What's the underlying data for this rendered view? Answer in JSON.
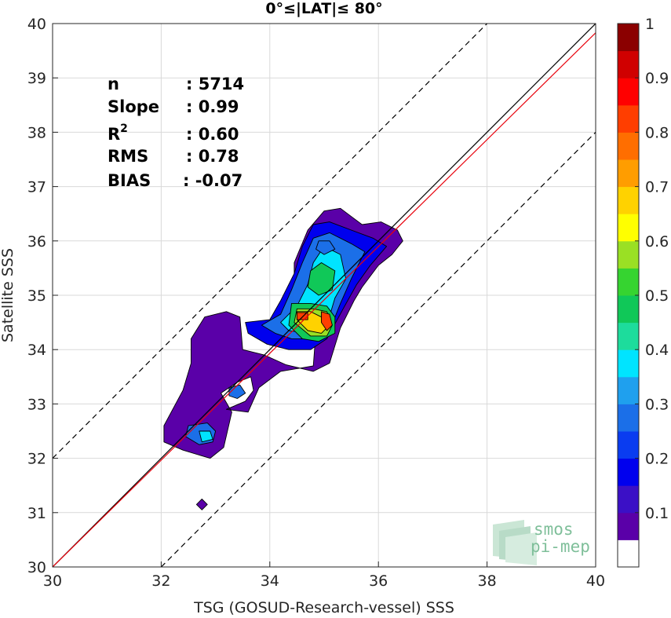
{
  "chart_data": {
    "type": "heatmap",
    "subtype": "filled-contour density scatter",
    "title": "0°≤|LAT|≤ 80°",
    "xlabel": "TSG (GOSUD-Research-vessel) SSS",
    "ylabel": "Satellite SSS",
    "xlim": [
      30,
      40
    ],
    "ylim": [
      30,
      40
    ],
    "xticks": [
      "30",
      "32",
      "34",
      "36",
      "38",
      "40"
    ],
    "yticks": [
      "30",
      "31",
      "32",
      "33",
      "34",
      "35",
      "36",
      "37",
      "38",
      "39",
      "40"
    ],
    "grid": true,
    "stats": [
      {
        "label": "n",
        "value": ": 5714"
      },
      {
        "label": "Slope",
        "value": ": 0.99"
      },
      {
        "label": "R",
        "sup": "2",
        "value": ": 0.60"
      },
      {
        "label": "RMS",
        "value": ": 0.78"
      },
      {
        "label": "BIAS",
        "value": ": -0.07"
      }
    ],
    "reference_lines": [
      {
        "kind": "identity",
        "color": "#000000",
        "points": [
          [
            30,
            30
          ],
          [
            40,
            40
          ]
        ]
      },
      {
        "kind": "regression",
        "color": "#e8000b",
        "points": [
          [
            30,
            30
          ],
          [
            40,
            39.83
          ]
        ]
      },
      {
        "kind": "plus-2",
        "color": "#000000",
        "dash": true,
        "points": [
          [
            30,
            32
          ],
          [
            38,
            40
          ]
        ]
      },
      {
        "kind": "minus-2",
        "color": "#000000",
        "dash": true,
        "points": [
          [
            32,
            30
          ],
          [
            40,
            38
          ]
        ]
      }
    ],
    "colorbar": {
      "range": [
        0,
        1
      ],
      "ticks": [
        "0.1",
        "0.2",
        "0.3",
        "0.4",
        "0.5",
        "0.6",
        "0.7",
        "0.8",
        "0.9",
        "1"
      ],
      "tick_values": [
        0.1,
        0.2,
        0.3,
        0.4,
        0.5,
        0.6,
        0.7,
        0.8,
        0.9,
        1.0
      ],
      "bands": [
        {
          "from": 0.0,
          "to": 0.05,
          "color": "#ffffff"
        },
        {
          "from": 0.05,
          "to": 0.1,
          "color": "#5a00a8"
        },
        {
          "from": 0.1,
          "to": 0.15,
          "color": "#3b10c6"
        },
        {
          "from": 0.15,
          "to": 0.2,
          "color": "#0000ee"
        },
        {
          "from": 0.2,
          "to": 0.25,
          "color": "#0a3cf0"
        },
        {
          "from": 0.25,
          "to": 0.3,
          "color": "#1b6fe8"
        },
        {
          "from": 0.3,
          "to": 0.35,
          "color": "#1fa0ee"
        },
        {
          "from": 0.35,
          "to": 0.4,
          "color": "#00e4ff"
        },
        {
          "from": 0.4,
          "to": 0.45,
          "color": "#1ddc9c"
        },
        {
          "from": 0.45,
          "to": 0.5,
          "color": "#10c858"
        },
        {
          "from": 0.5,
          "to": 0.55,
          "color": "#36d430"
        },
        {
          "from": 0.55,
          "to": 0.6,
          "color": "#9ae024"
        },
        {
          "from": 0.6,
          "to": 0.65,
          "color": "#ffff00"
        },
        {
          "from": 0.65,
          "to": 0.7,
          "color": "#ffd200"
        },
        {
          "from": 0.7,
          "to": 0.75,
          "color": "#ff9d00"
        },
        {
          "from": 0.75,
          "to": 0.8,
          "color": "#ff6e00"
        },
        {
          "from": 0.8,
          "to": 0.85,
          "color": "#ff3e00"
        },
        {
          "from": 0.85,
          "to": 0.9,
          "color": "#ff0000"
        },
        {
          "from": 0.9,
          "to": 0.95,
          "color": "#d00000"
        },
        {
          "from": 0.95,
          "to": 1.0,
          "color": "#8b0000"
        }
      ]
    },
    "density_regions": [
      {
        "level": 0.1,
        "points": [
          [
            35.0,
            36.55
          ],
          [
            35.3,
            36.6
          ],
          [
            35.5,
            36.45
          ],
          [
            35.7,
            36.3
          ],
          [
            36.05,
            36.35
          ],
          [
            36.35,
            36.2
          ],
          [
            36.45,
            36.0
          ],
          [
            36.25,
            35.75
          ],
          [
            36.0,
            35.55
          ],
          [
            35.7,
            35.15
          ],
          [
            35.55,
            34.9
          ],
          [
            35.3,
            34.4
          ],
          [
            35.1,
            33.75
          ],
          [
            34.8,
            33.6
          ],
          [
            34.3,
            33.72
          ],
          [
            33.9,
            33.9
          ],
          [
            33.5,
            34.0
          ],
          [
            33.45,
            34.6
          ],
          [
            33.2,
            34.7
          ],
          [
            32.8,
            34.6
          ],
          [
            32.55,
            34.2
          ],
          [
            32.55,
            33.75
          ],
          [
            32.4,
            33.25
          ],
          [
            32.05,
            32.6
          ],
          [
            32.05,
            32.3
          ],
          [
            32.4,
            32.15
          ],
          [
            32.9,
            32.0
          ],
          [
            33.15,
            32.2
          ],
          [
            33.3,
            32.85
          ],
          [
            33.1,
            33.2
          ],
          [
            33.4,
            33.4
          ],
          [
            33.65,
            33.5
          ],
          [
            33.7,
            33.25
          ],
          [
            33.55,
            33.05
          ],
          [
            33.2,
            32.9
          ],
          [
            33.6,
            32.85
          ],
          [
            33.8,
            33.3
          ],
          [
            34.2,
            33.6
          ],
          [
            34.8,
            33.7
          ],
          [
            34.85,
            34.35
          ],
          [
            34.5,
            34.6
          ],
          [
            34.45,
            35.1
          ],
          [
            34.45,
            35.6
          ],
          [
            34.7,
            36.2
          ]
        ]
      },
      {
        "level": 0.2,
        "points": [
          [
            35.1,
            36.35
          ],
          [
            35.5,
            36.2
          ],
          [
            35.9,
            36.05
          ],
          [
            36.15,
            35.9
          ],
          [
            35.85,
            35.55
          ],
          [
            35.6,
            35.2
          ],
          [
            35.35,
            34.75
          ],
          [
            35.05,
            34.2
          ],
          [
            34.75,
            34.0
          ],
          [
            34.35,
            34.0
          ],
          [
            33.95,
            34.1
          ],
          [
            33.6,
            34.3
          ],
          [
            33.55,
            34.5
          ],
          [
            34.0,
            34.55
          ],
          [
            34.2,
            34.9
          ],
          [
            34.45,
            35.4
          ],
          [
            34.6,
            35.9
          ],
          [
            34.8,
            36.3
          ]
        ]
      },
      {
        "level": 0.3,
        "points": [
          [
            35.1,
            36.15
          ],
          [
            35.5,
            35.95
          ],
          [
            35.75,
            35.8
          ],
          [
            35.5,
            35.3
          ],
          [
            35.3,
            34.85
          ],
          [
            35.1,
            34.35
          ],
          [
            34.8,
            34.2
          ],
          [
            34.4,
            34.2
          ],
          [
            34.1,
            34.3
          ],
          [
            33.85,
            34.45
          ],
          [
            34.2,
            34.65
          ],
          [
            34.4,
            35.1
          ],
          [
            34.6,
            35.6
          ],
          [
            34.8,
            36.05
          ]
        ]
      },
      {
        "level": 0.4,
        "points": [
          [
            35.0,
            35.9
          ],
          [
            35.3,
            35.75
          ],
          [
            35.4,
            35.3
          ],
          [
            35.2,
            34.95
          ],
          [
            35.05,
            34.45
          ],
          [
            34.7,
            34.3
          ],
          [
            34.35,
            34.35
          ],
          [
            34.2,
            34.5
          ],
          [
            34.5,
            34.8
          ],
          [
            34.7,
            35.2
          ],
          [
            34.8,
            35.6
          ]
        ]
      },
      {
        "level": 0.5,
        "points": [
          [
            34.95,
            35.6
          ],
          [
            35.2,
            35.45
          ],
          [
            35.15,
            35.1
          ],
          [
            34.9,
            35.0
          ],
          [
            34.7,
            35.15
          ],
          [
            34.75,
            35.45
          ]
        ]
      },
      {
        "level": 0.5,
        "points": [
          [
            34.4,
            34.85
          ],
          [
            34.75,
            34.85
          ],
          [
            35.05,
            34.8
          ],
          [
            35.2,
            34.6
          ],
          [
            35.2,
            34.3
          ],
          [
            34.9,
            34.15
          ],
          [
            34.6,
            34.2
          ],
          [
            34.35,
            34.45
          ]
        ]
      },
      {
        "level": 0.6,
        "points": [
          [
            34.5,
            34.75
          ],
          [
            34.8,
            34.75
          ],
          [
            35.05,
            34.7
          ],
          [
            35.15,
            34.45
          ],
          [
            35.05,
            34.25
          ],
          [
            34.75,
            34.25
          ],
          [
            34.45,
            34.5
          ]
        ]
      },
      {
        "level": 0.7,
        "points": [
          [
            34.5,
            34.7
          ],
          [
            34.75,
            34.7
          ],
          [
            34.95,
            34.6
          ],
          [
            35.1,
            34.45
          ],
          [
            34.95,
            34.3
          ],
          [
            34.7,
            34.35
          ],
          [
            34.5,
            34.55
          ]
        ]
      },
      {
        "level": 0.85,
        "points": [
          [
            34.95,
            34.7
          ],
          [
            35.1,
            34.65
          ],
          [
            35.15,
            34.45
          ],
          [
            35.05,
            34.35
          ],
          [
            34.95,
            34.5
          ]
        ]
      },
      {
        "level": 0.85,
        "points": [
          [
            34.5,
            34.68
          ],
          [
            34.7,
            34.68
          ],
          [
            34.7,
            34.55
          ],
          [
            34.5,
            34.55
          ]
        ]
      },
      {
        "level": 0.3,
        "points": [
          [
            34.9,
            36.0
          ],
          [
            35.1,
            36.0
          ],
          [
            35.2,
            35.85
          ],
          [
            35.0,
            35.75
          ],
          [
            34.85,
            35.85
          ]
        ]
      },
      {
        "level": 0.3,
        "points": [
          [
            32.5,
            32.6
          ],
          [
            32.85,
            32.65
          ],
          [
            33.0,
            32.5
          ],
          [
            32.95,
            32.3
          ],
          [
            32.7,
            32.25
          ],
          [
            32.45,
            32.4
          ]
        ]
      },
      {
        "level": 0.4,
        "points": [
          [
            32.7,
            32.5
          ],
          [
            32.9,
            32.5
          ],
          [
            32.95,
            32.35
          ],
          [
            32.75,
            32.3
          ]
        ]
      },
      {
        "level": 0.3,
        "points": [
          [
            33.25,
            33.3
          ],
          [
            33.45,
            33.35
          ],
          [
            33.55,
            33.2
          ],
          [
            33.4,
            33.1
          ],
          [
            33.25,
            33.15
          ]
        ]
      },
      {
        "level": 0.1,
        "points": [
          [
            32.65,
            31.15
          ],
          [
            32.75,
            31.25
          ],
          [
            32.85,
            31.15
          ],
          [
            32.75,
            31.05
          ]
        ]
      }
    ]
  },
  "watermark": {
    "line1": "smos",
    "line2": "pi-mep"
  }
}
